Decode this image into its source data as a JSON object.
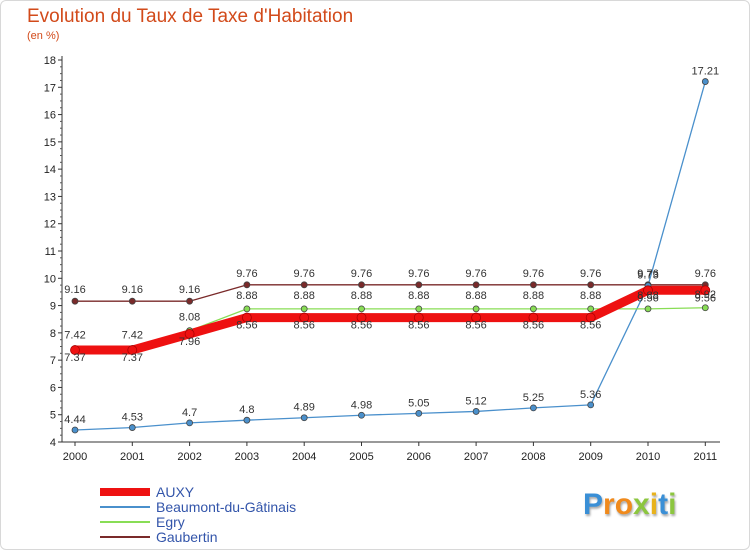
{
  "title": "Evolution du Taux de Taxe d'Habitation",
  "subtitle": "(en %)",
  "logo": {
    "text": "Proxiti",
    "letters": [
      "P",
      "r",
      "o",
      "x",
      "i",
      "t",
      "i"
    ],
    "colors": [
      "#3a8fd6",
      "#f08a1c",
      "#f08a1c",
      "#8cc63f",
      "#e8b21c",
      "#3a8fd6",
      "#8cc63f"
    ]
  },
  "chart_data": {
    "type": "line",
    "x": [
      "2000",
      "2001",
      "2002",
      "2003",
      "2004",
      "2005",
      "2006",
      "2007",
      "2008",
      "2009",
      "2010",
      "2011"
    ],
    "ylim": [
      4,
      18
    ],
    "yticks": [
      "4",
      "5",
      "6",
      "7",
      "8",
      "9",
      "10",
      "11",
      "12",
      "13",
      "14",
      "15",
      "16",
      "17",
      "18"
    ],
    "grid": false,
    "legend_position": "bottom-left",
    "series": [
      {
        "name": "AUXY",
        "color": "#ee1111",
        "values": [
          7.37,
          7.37,
          7.96,
          8.56,
          8.56,
          8.56,
          8.56,
          8.56,
          8.56,
          8.56,
          9.56,
          9.56
        ]
      },
      {
        "name": "Beaumont-du-Gâtinais",
        "color": "#4a90cc",
        "values": [
          4.44,
          4.53,
          4.7,
          4.8,
          4.89,
          4.98,
          5.05,
          5.12,
          5.25,
          5.36,
          9.73,
          17.21
        ]
      },
      {
        "name": "Egry",
        "color": "#88dd55",
        "values": [
          7.42,
          7.42,
          8.08,
          8.88,
          8.88,
          8.88,
          8.88,
          8.88,
          8.88,
          8.88,
          8.88,
          8.92
        ]
      },
      {
        "name": "Gaubertin",
        "color": "#7a2a2a",
        "values": [
          9.16,
          9.16,
          9.16,
          9.76,
          9.76,
          9.76,
          9.76,
          9.76,
          9.76,
          9.76,
          9.76,
          9.76
        ]
      }
    ],
    "data_labels": [
      {
        "series": "AUXY",
        "labels": [
          "7.37",
          "7.37",
          "7.96",
          "8.56",
          "8.56",
          "8.56",
          "8.56",
          "8.56",
          "8.56",
          "8.56",
          "9.56",
          "9.56"
        ]
      },
      {
        "series": "Beaumont-du-Gâtinais",
        "labels": [
          "4.44",
          "4.53",
          "4.7",
          "4.8",
          "4.89",
          "4.98",
          "5.05",
          "5.12",
          "5.25",
          "5.36",
          "9.73",
          "17.21"
        ]
      },
      {
        "series": "Egry",
        "labels": [
          "7.42",
          "7.42",
          "8.08",
          "8.88",
          "8.88",
          "8.88",
          "8.88",
          "8.88",
          "8.88",
          "8.88",
          "8.88",
          "8.92"
        ]
      },
      {
        "series": "Gaubertin",
        "labels": [
          "9.16",
          "9.16",
          "9.16",
          "9.76",
          "9.76",
          "9.76",
          "9.76",
          "9.76",
          "9.76",
          "9.76",
          "9.76",
          "9.76"
        ]
      }
    ]
  }
}
